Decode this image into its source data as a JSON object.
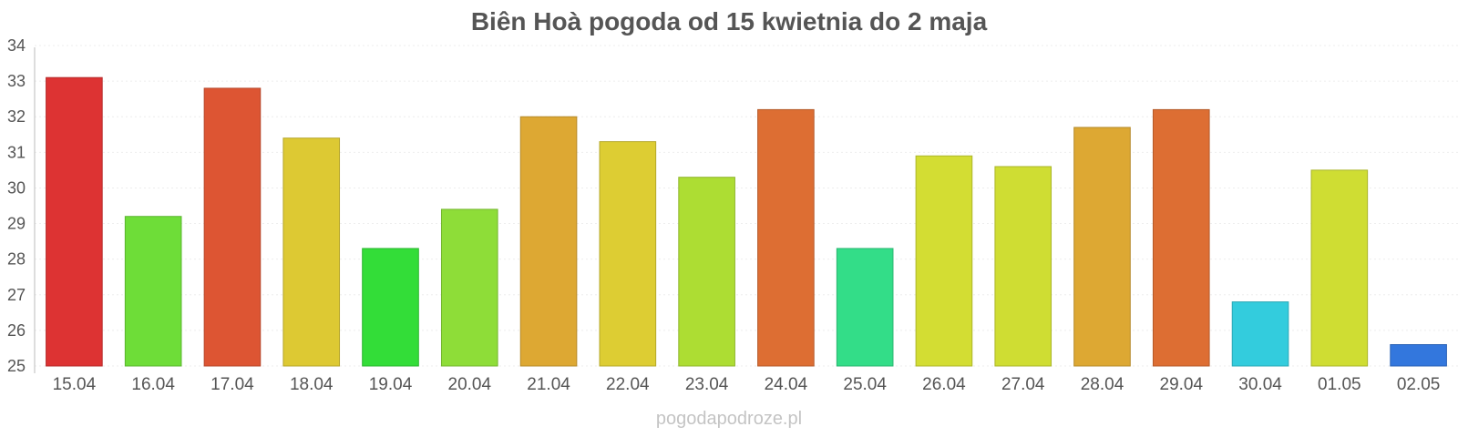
{
  "chart_data": {
    "type": "bar",
    "title": "Biên Hoà pogoda od 15 kwietnia do 2 maja",
    "categories": [
      "15.04",
      "16.04",
      "17.04",
      "18.04",
      "19.04",
      "20.04",
      "21.04",
      "22.04",
      "23.04",
      "24.04",
      "25.04",
      "26.04",
      "27.04",
      "28.04",
      "29.04",
      "30.04",
      "01.05",
      "02.05"
    ],
    "values": [
      33.1,
      29.2,
      32.8,
      31.4,
      28.3,
      29.4,
      32.0,
      31.3,
      30.3,
      32.2,
      28.3,
      30.9,
      30.6,
      31.7,
      32.2,
      26.8,
      30.5,
      25.6
    ],
    "colors": [
      "#dd3333",
      "#6edd38",
      "#dd5533",
      "#ddc933",
      "#33dd38",
      "#8edd38",
      "#dda833",
      "#ddcd33",
      "#addd33",
      "#dd6e33",
      "#33dd88",
      "#d3dd33",
      "#cfdd33",
      "#dda833",
      "#dd6e33",
      "#33ccdd",
      "#cfdd33",
      "#3377dd"
    ],
    "ylim": [
      25,
      34
    ],
    "yticks": [
      25,
      26,
      27,
      28,
      29,
      30,
      31,
      32,
      33,
      34
    ],
    "grid": true,
    "legend": "none"
  },
  "watermark": "pogodapodroze.pl"
}
